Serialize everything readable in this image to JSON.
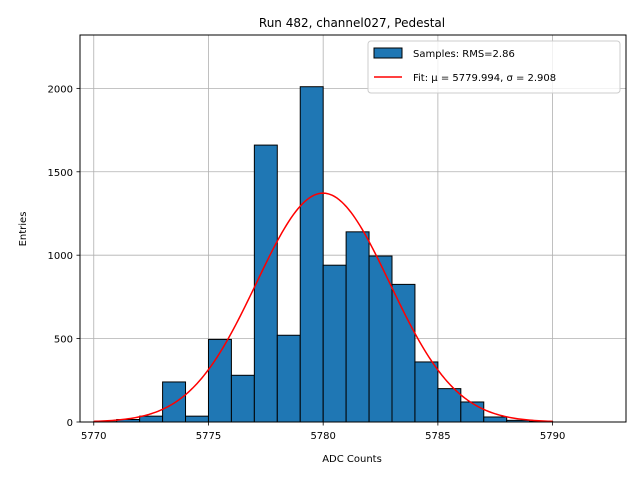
{
  "chart_data": {
    "type": "bar",
    "title": "Run 482, channel027, Pedestal",
    "xlabel": "ADC Counts",
    "ylabel": "Entries",
    "xlim": [
      5769.4,
      5793.2
    ],
    "ylim": [
      0,
      2320
    ],
    "grid": true,
    "legend_position": "upper right",
    "x_ticks": [
      5770,
      5775,
      5780,
      5785,
      5790
    ],
    "y_ticks": [
      0,
      500,
      1000,
      1500,
      2000
    ],
    "bin_edges": [
      5770,
      5771,
      5772,
      5773,
      5774,
      5775,
      5776,
      5777,
      5778,
      5779,
      5780,
      5781,
      5782,
      5783,
      5784,
      5785,
      5786,
      5787,
      5788,
      5789,
      5790
    ],
    "series": [
      {
        "name": "Samples: RMS=2.86",
        "kind": "histogram",
        "color": "#1f77b4",
        "edgecolor": "#000000",
        "values": [
          2,
          15,
          35,
          240,
          35,
          495,
          280,
          1660,
          520,
          2010,
          940,
          1140,
          995,
          825,
          360,
          200,
          120,
          30,
          10,
          4
        ]
      },
      {
        "name": "Fit: μ = 5779.994, σ = 2.908",
        "kind": "line",
        "color": "#ff0000",
        "mu": 5779.994,
        "sigma": 2.908,
        "amplitude": 1372,
        "x_range": [
          5770,
          5790
        ]
      }
    ]
  }
}
